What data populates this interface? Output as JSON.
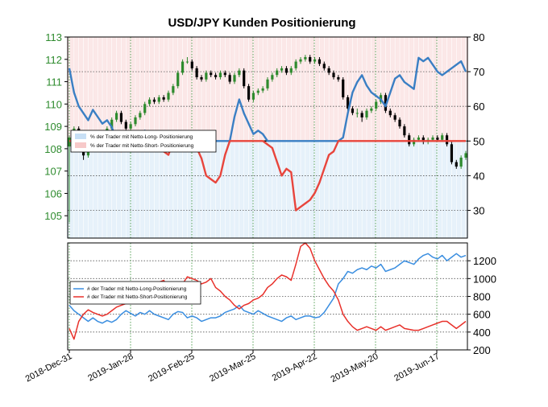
{
  "chart_data": [
    {
      "type": "candlestick-with-line",
      "title": "USD/JPY Kunden Positionierung",
      "x_tick_labels": [
        "2018-Dec-31",
        "2019-Jan-28",
        "2019-Feb-25",
        "2019-Mar-25",
        "2019-Apr-22",
        "2019-May-20",
        "2019-Jun-17"
      ],
      "left_axis": {
        "ylim": [
          104,
          113
        ],
        "ticks": [
          105,
          106,
          107,
          108,
          109,
          110,
          111,
          112,
          113
        ],
        "color": "#2e8b2e"
      },
      "right_axis": {
        "ylim": [
          22,
          80
        ],
        "ticks": [
          30,
          40,
          50,
          60,
          70,
          80
        ]
      },
      "reference_line": 50,
      "legend": {
        "placement": "center-left",
        "entries": [
          {
            "label": "% der Trader mit Netto-Long- Positionierung",
            "color": "#c7dff5"
          },
          {
            "label": "% der Trader mit Netto-Short- Positionierung",
            "color": "#f7c9c9"
          }
        ]
      },
      "candles": {
        "colors": {
          "up": "#2e8b2e",
          "down": "#000000"
        },
        "close": [
          108.5,
          108.9,
          108.2,
          107.7,
          108.4,
          108.3,
          108.7,
          108.6,
          108.9,
          109.3,
          109.6,
          109.2,
          108.9,
          109.1,
          109.4,
          109.6,
          110.0,
          110.2,
          110.1,
          110.3,
          110.2,
          110.5,
          110.8,
          111.4,
          111.9,
          111.9,
          111.6,
          111.2,
          111.1,
          111.4,
          111.3,
          111.2,
          111.4,
          111.3,
          111.0,
          111.3,
          111.5,
          110.8,
          110.2,
          110.5,
          110.6,
          110.7,
          111.1,
          111.3,
          111.5,
          111.6,
          111.4,
          111.6,
          111.9,
          112.0,
          112.1,
          111.9,
          112.0,
          111.8,
          111.6,
          111.4,
          111.2,
          111.1,
          110.3,
          109.8,
          109.6,
          109.6,
          109.4,
          109.7,
          109.8,
          110.1,
          110.4,
          109.7,
          109.5,
          109.3,
          109.0,
          108.6,
          108.2,
          108.4,
          108.5,
          108.3,
          108.4,
          108.5,
          108.4,
          108.6,
          108.2,
          107.4,
          107.2,
          107.6,
          107.8
        ],
        "open": [
          108.1,
          108.5,
          108.9,
          108.2,
          107.7,
          108.4,
          108.3,
          108.7,
          108.6,
          108.9,
          109.3,
          109.6,
          109.2,
          108.9,
          109.1,
          109.4,
          109.6,
          110.0,
          110.2,
          110.1,
          110.3,
          110.2,
          110.5,
          110.8,
          111.4,
          111.9,
          111.9,
          111.6,
          111.2,
          111.1,
          111.4,
          111.3,
          111.2,
          111.4,
          111.3,
          111.0,
          111.3,
          111.5,
          110.8,
          110.2,
          110.5,
          110.6,
          110.7,
          111.1,
          111.3,
          111.5,
          111.6,
          111.4,
          111.6,
          111.9,
          112.0,
          112.1,
          111.9,
          112.0,
          111.8,
          111.6,
          111.4,
          111.2,
          111.1,
          110.3,
          109.8,
          109.6,
          109.6,
          109.4,
          109.7,
          109.8,
          110.1,
          110.4,
          109.7,
          109.5,
          109.3,
          109.0,
          108.6,
          108.2,
          108.4,
          108.5,
          108.3,
          108.4,
          108.5,
          108.4,
          108.6,
          108.2,
          107.4,
          107.2,
          107.6
        ],
        "high": [
          108.6,
          109.0,
          109.0,
          108.3,
          108.5,
          108.5,
          108.8,
          108.8,
          109.0,
          109.4,
          109.7,
          109.7,
          109.3,
          109.2,
          109.5,
          109.7,
          110.1,
          110.3,
          110.3,
          110.4,
          110.4,
          110.6,
          110.9,
          111.5,
          112.0,
          112.1,
          112.0,
          111.7,
          111.3,
          111.5,
          111.5,
          111.4,
          111.5,
          111.5,
          111.4,
          111.4,
          111.6,
          111.6,
          110.9,
          110.6,
          110.7,
          110.8,
          111.2,
          111.4,
          111.6,
          111.7,
          111.7,
          111.7,
          112.0,
          112.1,
          112.2,
          112.2,
          112.1,
          112.1,
          111.9,
          111.7,
          111.5,
          111.3,
          111.2,
          110.4,
          109.9,
          109.8,
          109.7,
          109.8,
          109.9,
          110.2,
          110.5,
          110.5,
          109.8,
          109.6,
          109.4,
          109.1,
          108.7,
          108.5,
          108.6,
          108.6,
          108.5,
          108.6,
          108.6,
          108.7,
          108.7,
          108.3,
          107.5,
          107.7,
          107.9
        ],
        "low": [
          104.7,
          108.4,
          108.1,
          107.5,
          107.6,
          108.2,
          108.2,
          108.5,
          108.5,
          108.8,
          109.2,
          109.1,
          108.8,
          108.8,
          109.0,
          109.3,
          109.5,
          109.9,
          110.0,
          110.0,
          110.1,
          110.1,
          110.4,
          110.7,
          111.3,
          111.8,
          111.5,
          111.1,
          111.0,
          111.0,
          111.2,
          111.1,
          111.1,
          111.2,
          110.9,
          110.9,
          111.2,
          110.7,
          110.1,
          110.1,
          110.4,
          110.5,
          110.6,
          111.0,
          111.2,
          111.4,
          111.3,
          111.3,
          111.5,
          111.8,
          111.9,
          111.8,
          111.8,
          111.7,
          111.5,
          111.3,
          111.1,
          111.0,
          110.2,
          109.7,
          109.5,
          109.4,
          109.2,
          109.3,
          109.6,
          109.7,
          110.0,
          109.6,
          109.4,
          109.2,
          108.9,
          108.5,
          108.1,
          108.1,
          108.3,
          108.2,
          108.2,
          108.3,
          108.3,
          108.3,
          108.1,
          107.3,
          107.1,
          107.1,
          107.5
        ]
      },
      "series": [
        {
          "name": "% der Trader mit Netto-Long- Positionierung",
          "color": "#3a7fc4",
          "values": [
            71,
            64,
            60,
            58,
            56,
            59,
            57,
            55,
            56,
            54,
            50,
            47,
            48,
            49,
            52,
            51,
            53,
            51,
            49,
            48,
            47,
            46,
            50,
            51,
            52,
            49,
            50,
            48,
            45,
            40,
            39,
            38,
            40,
            46,
            50,
            57,
            62,
            58,
            55,
            52,
            53,
            52,
            49,
            48,
            44,
            40,
            42,
            41,
            30,
            31,
            32,
            33,
            35,
            38,
            42,
            46,
            47,
            50,
            51,
            58,
            64,
            67,
            69,
            66,
            64,
            63,
            62,
            60,
            64,
            68,
            69,
            67,
            66,
            65,
            74,
            73,
            74,
            72,
            70,
            69,
            70,
            71,
            72,
            73,
            70
          ]
        },
        {
          "name": "% der Trader mit Netto-Short- Positionierung",
          "color": "#e8453c",
          "values": [
            29,
            36,
            40,
            42,
            44,
            41,
            43,
            45,
            44,
            46,
            50,
            53,
            52,
            51,
            48,
            49,
            47,
            49,
            51,
            52,
            53,
            54,
            50,
            49,
            48,
            51,
            50,
            52,
            55,
            60,
            61,
            62,
            60,
            54,
            50,
            43,
            38,
            42,
            45,
            48,
            47,
            48,
            51,
            52,
            56,
            60,
            58,
            59,
            70,
            69,
            68,
            67,
            65,
            62,
            58,
            54,
            53,
            50,
            49,
            42,
            36,
            33,
            31,
            34,
            36,
            37,
            38,
            40,
            36,
            32,
            31,
            33,
            34,
            35,
            26,
            27,
            26,
            28,
            30,
            31,
            30,
            29,
            28,
            27,
            30
          ]
        }
      ]
    },
    {
      "type": "line",
      "y_tick_labels": [
        "200",
        "400",
        "600",
        "800",
        "1000",
        "1200"
      ],
      "ylim": [
        200,
        1400
      ],
      "legend": {
        "placement": "center-left",
        "entries": [
          {
            "label": "# der Trader mit Netto-Long-Positionierung",
            "color": "#3a8ee0"
          },
          {
            "label": "# der Trader mit Netto-Short-Positionierung",
            "color": "#e8312b"
          }
        ]
      },
      "series": [
        {
          "name": "# der Trader mit Netto-Long-Positionierung",
          "color": "#3a8ee0",
          "values": [
            700,
            640,
            600,
            560,
            520,
            560,
            520,
            500,
            530,
            510,
            540,
            600,
            640,
            610,
            580,
            620,
            600,
            640,
            600,
            580,
            560,
            540,
            600,
            630,
            620,
            560,
            580,
            560,
            520,
            540,
            560,
            560,
            580,
            620,
            640,
            660,
            700,
            640,
            620,
            600,
            640,
            610,
            580,
            560,
            540,
            520,
            560,
            580,
            540,
            560,
            580,
            580,
            560,
            570,
            620,
            700,
            780,
            940,
            1000,
            1080,
            1060,
            1100,
            1120,
            1100,
            1140,
            1120,
            1160,
            1080,
            1100,
            1120,
            1160,
            1200,
            1180,
            1160,
            1220,
            1260,
            1280,
            1240,
            1220,
            1260,
            1200,
            1240,
            1280,
            1240,
            1260
          ]
        },
        {
          "name": "# der Trader mit Netto-Short-Positionierung",
          "color": "#e8312b",
          "values": [
            440,
            320,
            520,
            600,
            650,
            620,
            600,
            580,
            600,
            640,
            680,
            700,
            720,
            740,
            760,
            820,
            860,
            900,
            940,
            960,
            980,
            900,
            860,
            880,
            940,
            1020,
            1000,
            980,
            940,
            960,
            1000,
            900,
            860,
            800,
            760,
            700,
            660,
            700,
            720,
            760,
            780,
            820,
            900,
            940,
            1000,
            1040,
            1020,
            980,
            1160,
            1360,
            1400,
            1340,
            1200,
            1100,
            1000,
            920,
            860,
            760,
            600,
            520,
            460,
            420,
            440,
            460,
            440,
            420,
            460,
            420,
            440,
            460,
            480,
            440,
            430,
            420,
            420,
            440,
            460,
            480,
            500,
            520,
            520,
            480,
            440,
            480,
            520
          ]
        }
      ]
    }
  ]
}
